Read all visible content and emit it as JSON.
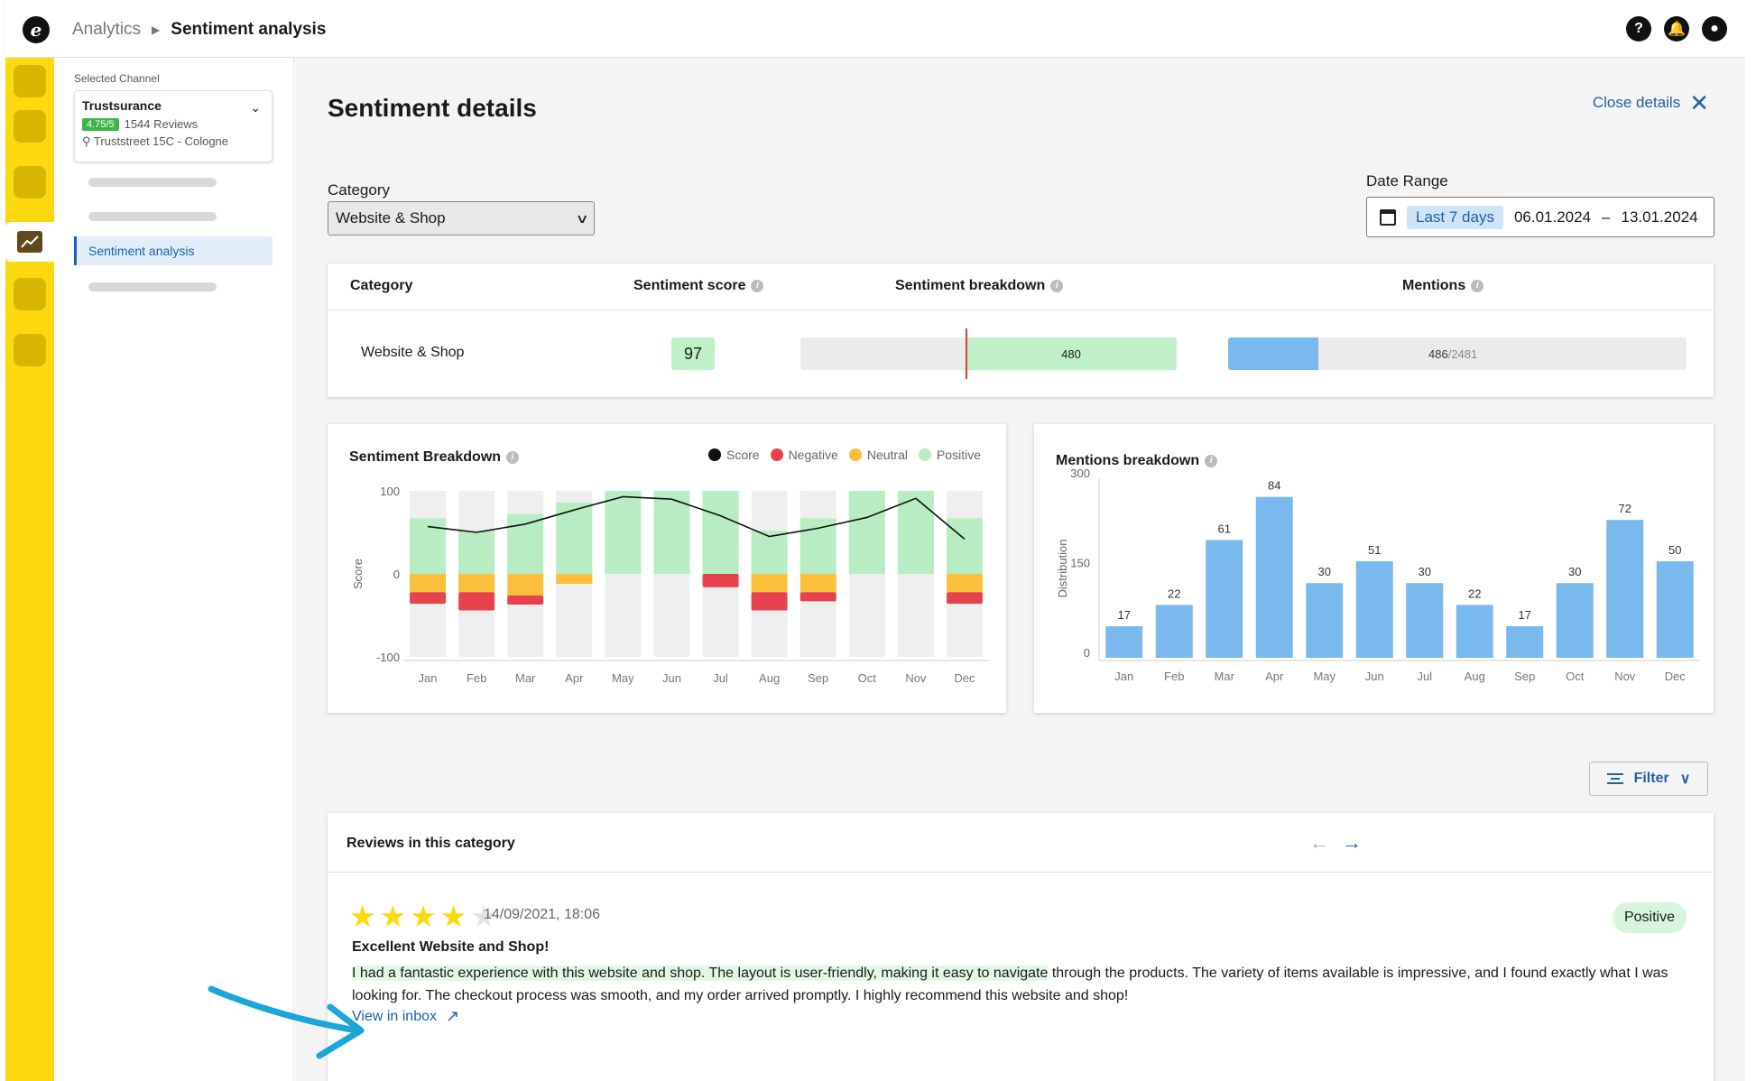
{
  "topbar": {
    "logo": "e",
    "breadcrumb_parent": "Analytics",
    "breadcrumb_current": "Sentiment analysis",
    "icons": [
      "help-icon",
      "bell-icon",
      "account-icon"
    ]
  },
  "sidebar": {
    "selected_channel_label": "Selected Channel",
    "channel_name": "Trustsurance",
    "rating": "4.75/5",
    "reviews": "1544 Reviews",
    "address": "Truststreet 15C - Cologne",
    "active_item": "Sentiment analysis"
  },
  "page": {
    "title": "Sentiment details",
    "close_label": "Close details"
  },
  "filters": {
    "category_label": "Category",
    "category_value": "Website & Shop",
    "date_range_label": "Date Range",
    "date_preset": "Last 7 days",
    "date_from": "06.01.2024",
    "date_sep": "–",
    "date_to": "13.01.2024"
  },
  "summary_table": {
    "headers": [
      "Category",
      "Sentiment score",
      "Sentiment breakdown",
      "Mentions"
    ],
    "row": {
      "category": "Website & Shop",
      "score": "97",
      "breakdown_value": "480",
      "mentions": "486",
      "mentions_total": "/2481",
      "mentions_ratio": 0.196
    }
  },
  "chart_data": [
    {
      "type": "bar",
      "title": "Sentiment Breakdown",
      "ylabel": "Score",
      "ylim": [
        -100,
        100
      ],
      "yticks": [
        "100",
        "0",
        "-100"
      ],
      "categories": [
        "Jan",
        "Feb",
        "Mar",
        "Apr",
        "May",
        "Jun",
        "Jul",
        "Aug",
        "Sep",
        "Oct",
        "Nov",
        "Dec"
      ],
      "legend": [
        "Score",
        "Negative",
        "Neutral",
        "Positive"
      ],
      "series": [
        {
          "name": "Positive",
          "values": [
            67,
            52,
            72,
            86,
            100,
            100,
            100,
            52,
            67,
            100,
            100,
            67
          ],
          "color": "#b8ecc2"
        },
        {
          "name": "Neutral",
          "values": [
            -22,
            -22,
            -26,
            -12,
            0,
            0,
            0,
            -22,
            -22,
            0,
            0,
            -22
          ],
          "color": "#fbbf3c"
        },
        {
          "name": "Negative",
          "values": [
            -14,
            -22,
            -11,
            0,
            0,
            0,
            -16,
            -22,
            -11,
            0,
            0,
            -14
          ],
          "color": "#e8424f"
        },
        {
          "name": "Score",
          "values": [
            57,
            50,
            60,
            77,
            93,
            90,
            70,
            45,
            55,
            68,
            91,
            42
          ],
          "color": "#111111"
        }
      ],
      "legend_position": "top-right"
    },
    {
      "type": "bar",
      "title": "Mentions breakdown",
      "ylabel": "Distribution",
      "ylim": [
        0,
        300
      ],
      "yticks": [
        "300",
        "150",
        "0"
      ],
      "categories": [
        "Jan",
        "Feb",
        "Mar",
        "Apr",
        "May",
        "Jun",
        "Jul",
        "Aug",
        "Sep",
        "Oct",
        "Nov",
        "Dec"
      ],
      "values": [
        17,
        22,
        61,
        84,
        30,
        51,
        30,
        22,
        17,
        30,
        72,
        50
      ],
      "heights": [
        55,
        92,
        205,
        280,
        130,
        168,
        130,
        92,
        55,
        130,
        240,
        168
      ],
      "color": "#79b9ee"
    }
  ],
  "filter_button": "Filter",
  "reviews": {
    "title": "Reviews in this category",
    "item": {
      "stars": 4,
      "max_stars": 5,
      "date": "14/09/2021, 18:06",
      "sentiment": "Positive",
      "headline": "Excellent Website and Shop!",
      "body_highlight": "I had a fantastic experience with this website and shop. The layout is user-friendly, making it easy to navigate",
      "body_rest": " through the products. The variety of items available is impressive, and I found exactly what I was looking for. The checkout process was smooth, and my order arrived promptly. I highly recommend this website and shop!",
      "link": "View in inbox"
    }
  },
  "colors": {
    "rail": "#FFD90F",
    "accent": "#1e5fa8",
    "positive": "#b8ecc2",
    "neutral": "#fbbf3c",
    "negative": "#e8424f",
    "mentions": "#79b9ee"
  }
}
